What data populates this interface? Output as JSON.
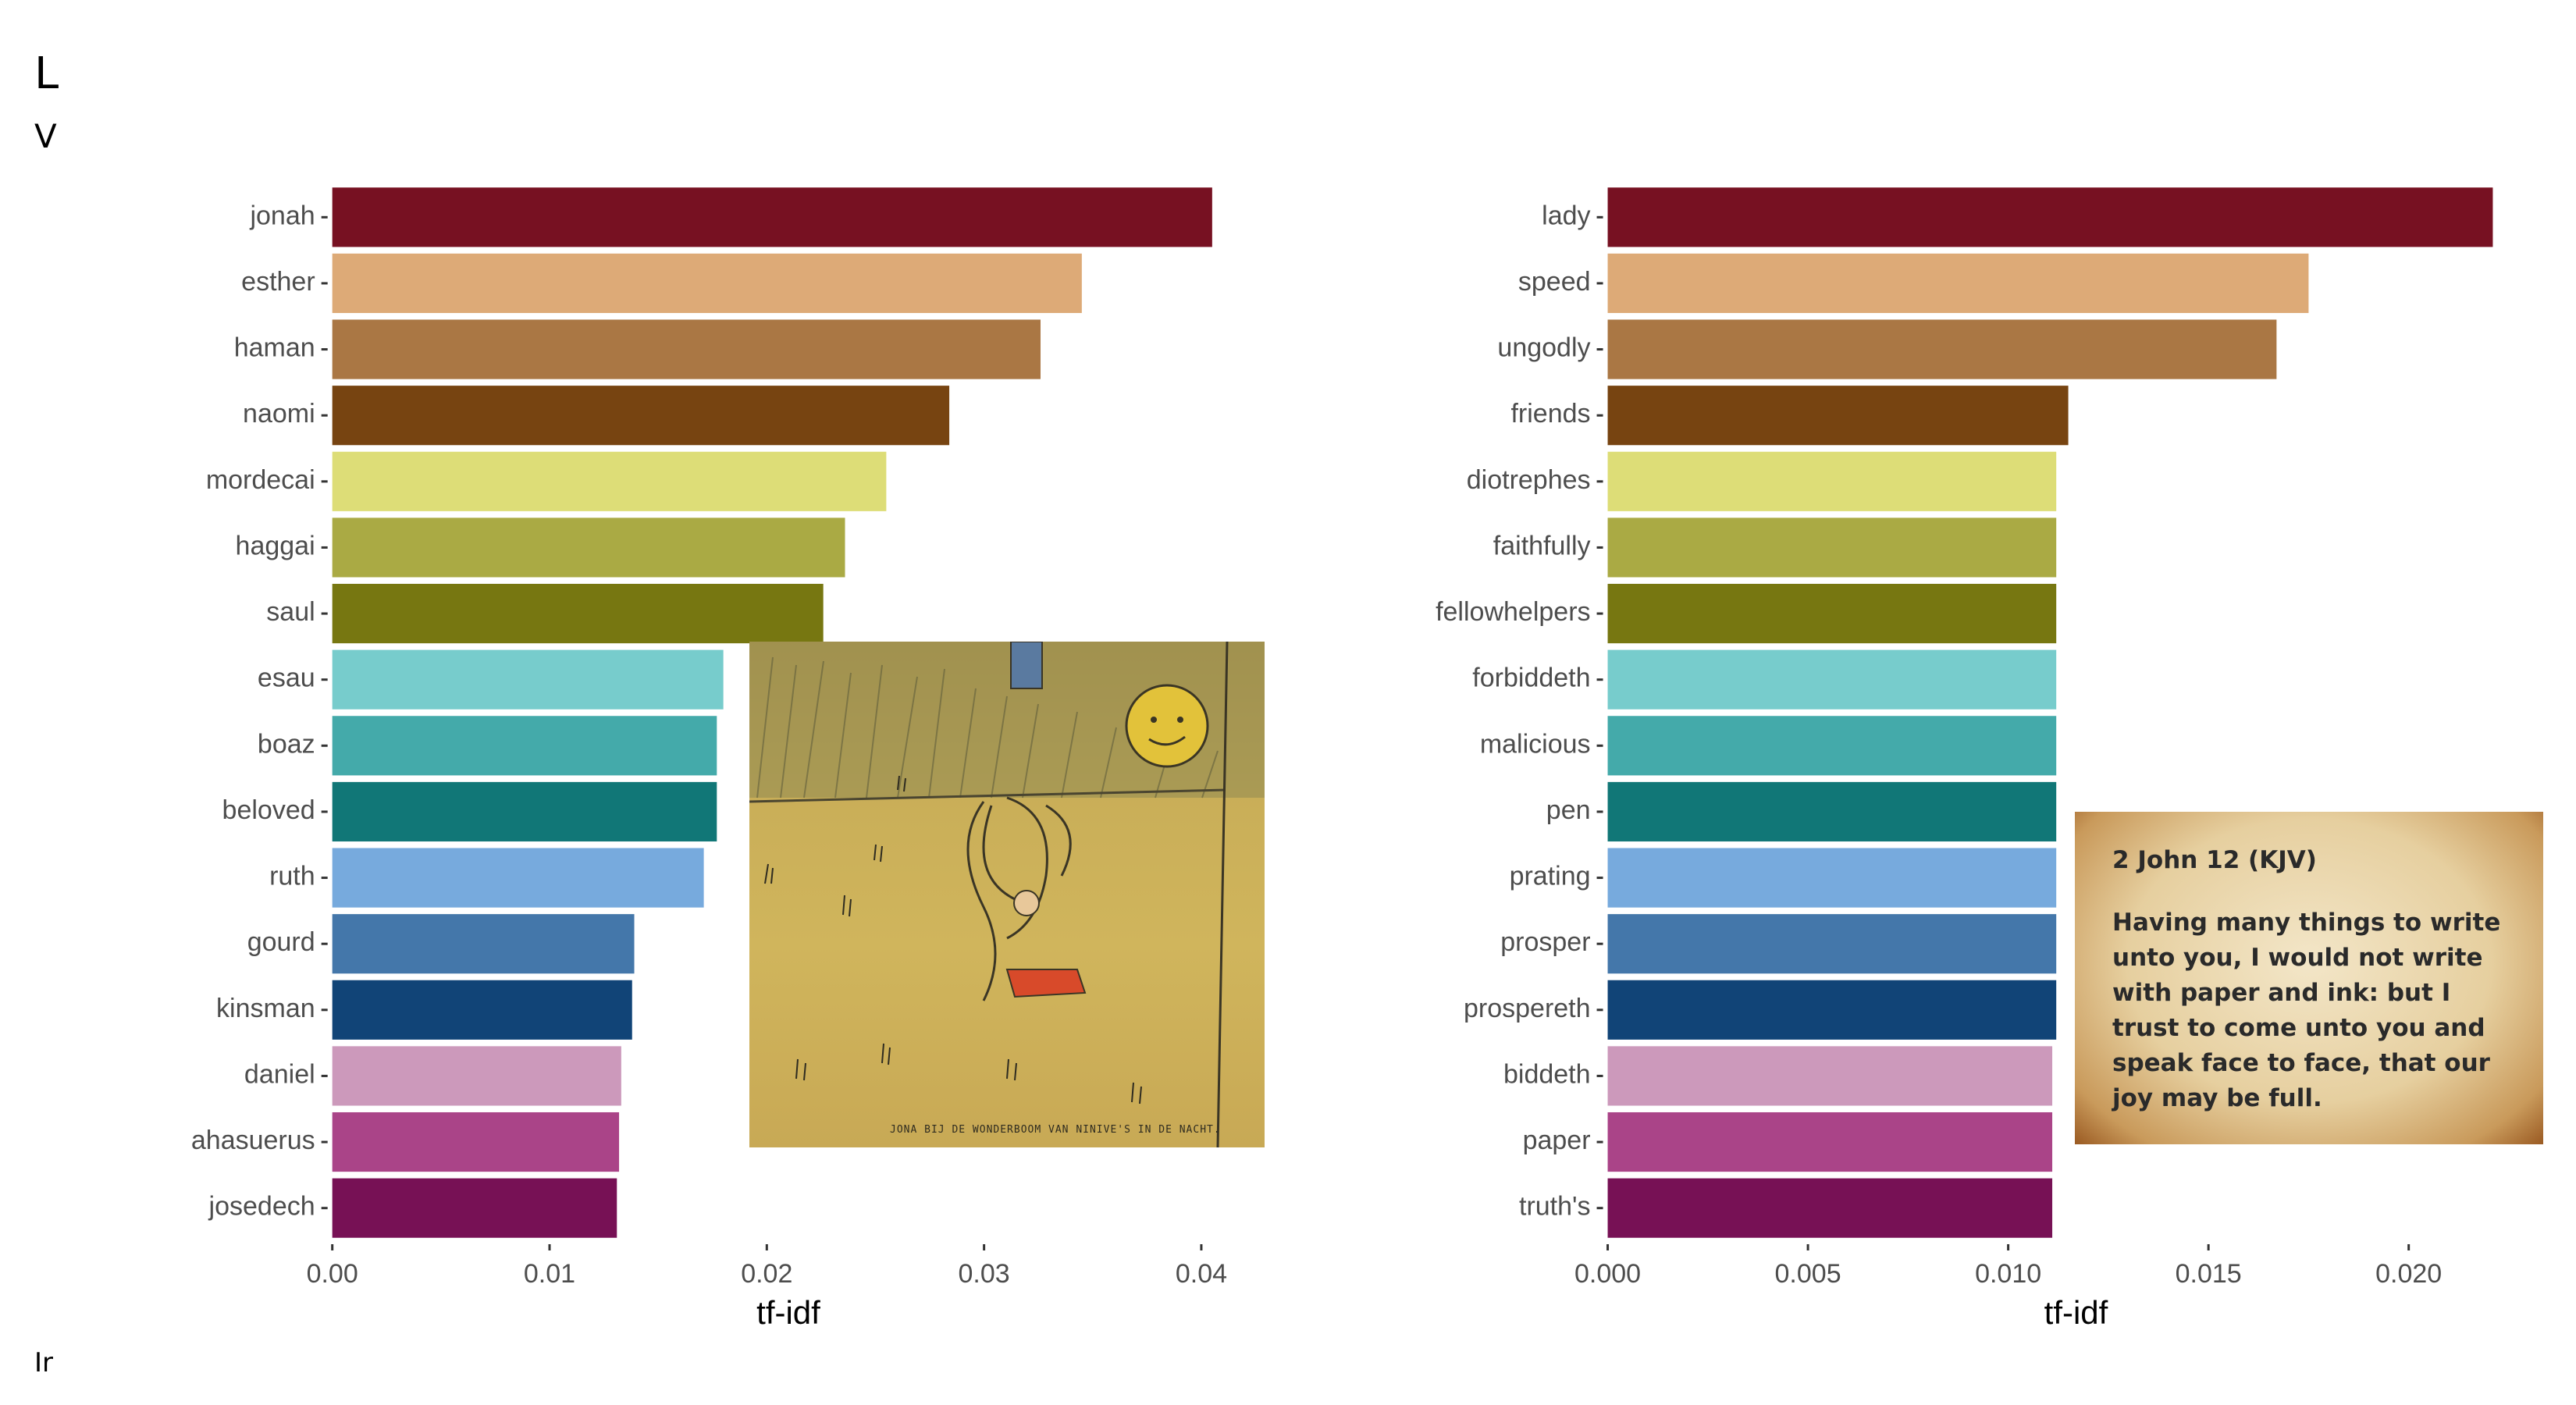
{
  "header": {
    "title_fragment": "L",
    "subtitle_fragment": "V"
  },
  "footer": {
    "caption_fragment": "Ir"
  },
  "verse_card": {
    "title": "2 John 12 (KJV)",
    "text": "Having many things to write unto you, I would not write with paper and ink: but I trust to come unto you and speak face to face, that our joy may be full."
  },
  "drawing": {
    "caption": "JONA BIJ DE WONDERBOOM VAN NINIVE'S IN DE NACHT."
  },
  "chart_data": [
    {
      "type": "bar",
      "orientation": "horizontal",
      "categories": [
        "jonah",
        "esther",
        "haman",
        "naomi",
        "mordecai",
        "haggai",
        "saul",
        "esau",
        "boaz",
        "beloved",
        "ruth",
        "gourd",
        "kinsman",
        "daniel",
        "ahasuerus",
        "josedech"
      ],
      "values": [
        0.0405,
        0.0345,
        0.0326,
        0.0284,
        0.0255,
        0.0236,
        0.0226,
        0.018,
        0.0177,
        0.0177,
        0.0171,
        0.0139,
        0.0138,
        0.0133,
        0.0132,
        0.0131
      ],
      "colors": [
        "#771122",
        "#DDAA77",
        "#AA7744",
        "#774411",
        "#DDDD77",
        "#AAAA44",
        "#777711",
        "#77CCCC",
        "#44AAAA",
        "#117777",
        "#77AADD",
        "#4477AA",
        "#114477",
        "#CC99BB",
        "#AA4488",
        "#771155"
      ],
      "xlabel": "tf-idf",
      "xticks": [
        "0.00",
        "0.01",
        "0.02",
        "0.03",
        "0.04"
      ],
      "xtick_values": [
        0,
        0.01,
        0.02,
        0.03,
        0.04
      ],
      "xlim": [
        -6e-05,
        0.0432
      ],
      "grid": false
    },
    {
      "type": "bar",
      "orientation": "horizontal",
      "categories": [
        "lady",
        "speed",
        "ungodly",
        "friends",
        "diotrephes",
        "faithfully",
        "fellowhelpers",
        "forbiddeth",
        "malicious",
        "pen",
        "prating",
        "prosper",
        "prospereth",
        "biddeth",
        "paper",
        "truth's"
      ],
      "values": [
        0.0221,
        0.0175,
        0.0167,
        0.0115,
        0.0112,
        0.0112,
        0.0112,
        0.0112,
        0.0112,
        0.0112,
        0.0112,
        0.0112,
        0.0112,
        0.0111,
        0.0111,
        0.0111
      ],
      "colors": [
        "#771122",
        "#DDAA77",
        "#AA7744",
        "#774411",
        "#DDDD77",
        "#AAAA44",
        "#777711",
        "#77CCCC",
        "#44AAAA",
        "#117777",
        "#77AADD",
        "#4477AA",
        "#114477",
        "#CC99BB",
        "#AA4488",
        "#771155"
      ],
      "xlabel": "tf-idf",
      "xticks": [
        "0.000",
        "0.005",
        "0.010",
        "0.015",
        "0.020"
      ],
      "xtick_values": [
        0,
        0.005,
        0.01,
        0.015,
        0.02
      ],
      "xlim": [
        -3e-05,
        0.0233
      ],
      "grid": false
    }
  ]
}
